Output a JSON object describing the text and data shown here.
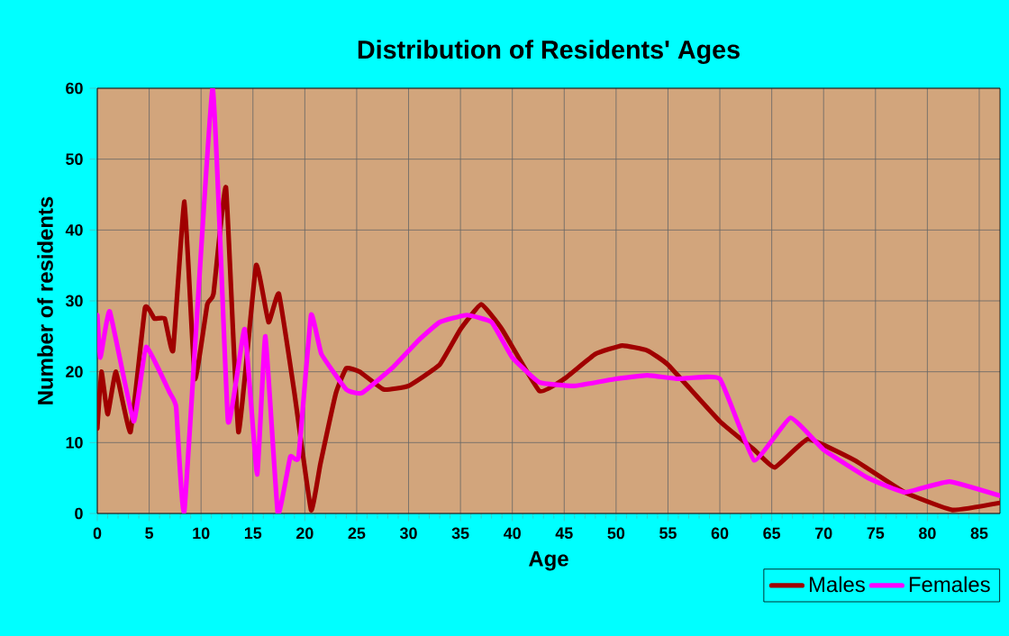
{
  "chart_data": {
    "type": "line",
    "title": "Distribution of Residents' Ages",
    "xlabel": "Age",
    "ylabel": "Number of residents",
    "xlim": [
      0,
      87
    ],
    "ylim": [
      0,
      60
    ],
    "xticks": [
      0,
      5,
      10,
      15,
      20,
      25,
      30,
      35,
      40,
      45,
      50,
      55,
      60,
      65,
      70,
      75,
      80,
      85
    ],
    "yticks": [
      0,
      10,
      20,
      30,
      40,
      50,
      60
    ],
    "grid": true,
    "legend": "bottom right",
    "marker": "none",
    "line_style": "solid",
    "series": [
      {
        "name": "Males",
        "color": "#a00000",
        "x": [
          0,
          0.4,
          1,
          1.8,
          3.2,
          4.6,
          5.5,
          6.5,
          7.3,
          8.4,
          9.4,
          10.6,
          11.2,
          12.4,
          13.6,
          15.3,
          16.5,
          17.5,
          19,
          20.6,
          21.5,
          23,
          24,
          25.3,
          27.6,
          30,
          33,
          35,
          37,
          39,
          42.6,
          45,
          48,
          50.6,
          53,
          55,
          60,
          63.3,
          65.3,
          68.5,
          73,
          77.8,
          82.4,
          87
        ],
        "values": [
          12,
          20,
          14,
          20,
          11.5,
          29,
          27.5,
          27.5,
          23,
          44,
          19,
          29.5,
          31,
          46,
          11.5,
          35,
          27,
          31,
          17,
          0.5,
          7,
          17,
          20.5,
          20,
          17.5,
          18,
          21,
          26,
          29.5,
          26,
          17.3,
          19,
          22.5,
          23.7,
          23,
          21,
          13,
          9,
          6.5,
          10.5,
          7.5,
          3,
          0.5,
          1.5
        ]
      },
      {
        "name": "Females",
        "color": "#ff00ff",
        "x": [
          0,
          0.3,
          1.2,
          3.5,
          4.7,
          7,
          7.6,
          8.4,
          11.1,
          12.6,
          14.2,
          15.4,
          16.2,
          17.4,
          18.6,
          19.4,
          20.6,
          21.6,
          24,
          25.5,
          28.4,
          31,
          33,
          35.6,
          38,
          40,
          42.6,
          46,
          50,
          53,
          56,
          60,
          63.3,
          66.8,
          70,
          74.3,
          77.8,
          82.1,
          87
        ],
        "values": [
          28,
          22,
          28.5,
          13,
          23.5,
          17,
          15,
          0.5,
          60,
          13,
          26,
          5.5,
          25,
          0,
          8,
          8,
          28,
          22.5,
          17.5,
          17,
          20.5,
          24.5,
          27,
          28,
          27,
          22,
          18.5,
          18,
          19,
          19.5,
          19,
          19,
          7.5,
          13.5,
          9,
          5,
          3,
          4.5,
          2.5
        ]
      }
    ]
  }
}
